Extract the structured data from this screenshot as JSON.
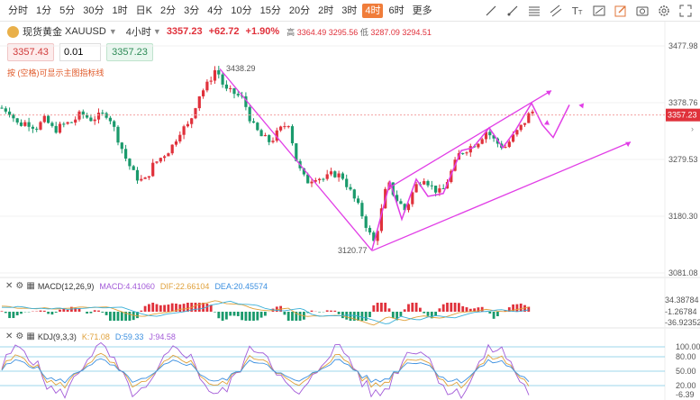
{
  "toolbar": {
    "timeframes": [
      "分时",
      "1分",
      "5分",
      "30分",
      "1时",
      "日K",
      "2分",
      "3分",
      "4分",
      "10分",
      "15分",
      "20分",
      "2时",
      "3时",
      "4时",
      "6时",
      "更多"
    ],
    "active_timeframe": "4时",
    "tool_icons": [
      "line-tool-icon",
      "ray-tool-icon",
      "fib-tool-icon",
      "channel-tool-icon",
      "text-tool-icon",
      "measure-tool-icon",
      "edit-icon",
      "screenshot-icon",
      "settings-icon",
      "fullscreen-icon"
    ]
  },
  "symbol": {
    "name": "现货黄金",
    "code": "XAUUSD",
    "timeframe": "4小时",
    "price": "3357.23",
    "change": "+62.72",
    "change_pct": "+1.90%",
    "high_label": "高",
    "high": "3364.49",
    "open_val": "3295.56",
    "low_label": "低",
    "low": "3287.09",
    "last": "3294.51"
  },
  "order": {
    "sell_price": "3357.43",
    "quantity": "0.01",
    "buy_price": "3357.23"
  },
  "hint_text": "按 (空格)可显示主图指标线",
  "price_axis": {
    "ticks": [
      "3477.98",
      "3378.76",
      "3279.53",
      "3180.30",
      "3081.08"
    ],
    "current_price": "3357.23"
  },
  "annotations": {
    "high_label": "3438.29",
    "low_label": "3120.77"
  },
  "macd": {
    "title": "MACD(12,26,9)",
    "macd_label": "MACD:4.41060",
    "dif_label": "DIF:22.66104",
    "dea_label": "DEA:20.45574",
    "axis": [
      "34.38784",
      "-1.26784",
      "-36.92352"
    ]
  },
  "kdj": {
    "title": "KDJ(9,3,3)",
    "k_label": "K:71.08",
    "d_label": "D:59.33",
    "j_label": "J:94.58",
    "axis": [
      "100.00",
      "80.00",
      "50.00",
      "20.00",
      "-6.39"
    ]
  },
  "colors": {
    "up": "#e0313b",
    "down": "#1a9a6c",
    "draw": "#e13ee6",
    "active_tf": "#f07d3a"
  }
}
